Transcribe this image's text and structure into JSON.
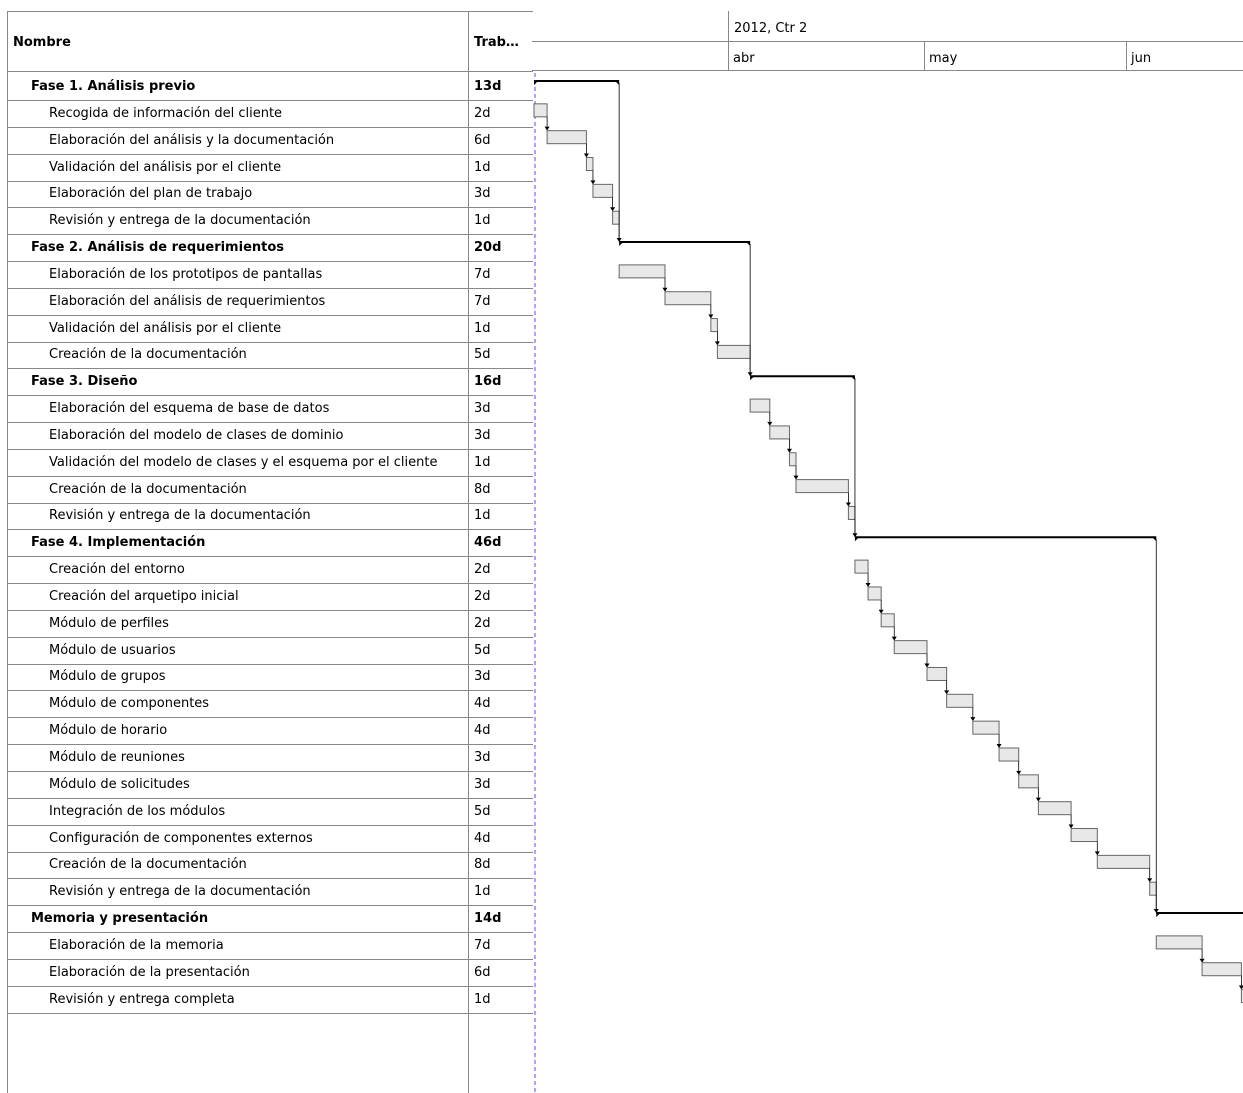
{
  "table": {
    "header_name": "Nombre",
    "header_work": "Trab…"
  },
  "timeline": {
    "period": "2012, Ctr 2",
    "months": [
      "abr",
      "may",
      "jun"
    ]
  },
  "rows": [
    {
      "name": "Fase 1. Análisis previo",
      "work": "13d",
      "phase": true
    },
    {
      "name": "Recogida de información del cliente",
      "work": "2d"
    },
    {
      "name": "Elaboración del análisis y la documentación",
      "work": "6d"
    },
    {
      "name": "Validación del análisis por el cliente",
      "work": "1d"
    },
    {
      "name": "Elaboración del plan de trabajo",
      "work": "3d"
    },
    {
      "name": "Revisión y entrega de la documentación",
      "work": "1d"
    },
    {
      "name": "Fase 2. Análisis de requerimientos",
      "work": "20d",
      "phase": true
    },
    {
      "name": "Elaboración de los prototipos de pantallas",
      "work": "7d"
    },
    {
      "name": "Elaboración del análisis de requerimientos",
      "work": "7d"
    },
    {
      "name": "Validación del análisis por el cliente",
      "work": "1d"
    },
    {
      "name": "Creación de la documentación",
      "work": "5d"
    },
    {
      "name": "Fase 3. Diseño",
      "work": "16d",
      "phase": true
    },
    {
      "name": "Elaboración del esquema de base de datos",
      "work": "3d"
    },
    {
      "name": "Elaboración del modelo de clases de dominio",
      "work": "3d"
    },
    {
      "name": "Validación del modelo de clases y el esquema por el cliente",
      "work": "1d"
    },
    {
      "name": "Creación de la documentación",
      "work": "8d"
    },
    {
      "name": "Revisión y entrega de la documentación",
      "work": "1d"
    },
    {
      "name": "Fase 4. Implementación",
      "work": "46d",
      "phase": true
    },
    {
      "name": "Creación del entorno",
      "work": "2d"
    },
    {
      "name": "Creación del arquetipo inicial",
      "work": "2d"
    },
    {
      "name": "Módulo de perfiles",
      "work": "2d"
    },
    {
      "name": "Módulo de usuarios",
      "work": "5d"
    },
    {
      "name": "Módulo de grupos",
      "work": "3d"
    },
    {
      "name": "Módulo de componentes",
      "work": "4d"
    },
    {
      "name": "Módulo de horario",
      "work": "4d"
    },
    {
      "name": "Módulo de reuniones",
      "work": "3d"
    },
    {
      "name": "Módulo de solicitudes",
      "work": "3d"
    },
    {
      "name": "Integración de los módulos",
      "work": "5d"
    },
    {
      "name": "Configuración de componentes externos",
      "work": "4d"
    },
    {
      "name": "Creación de la documentación",
      "work": "8d"
    },
    {
      "name": "Revisión y entrega de la documentación",
      "work": "1d"
    },
    {
      "name": "Memoria y presentación",
      "work": "14d",
      "phase": true
    },
    {
      "name": "Elaboración de la memoria",
      "work": "7d"
    },
    {
      "name": "Elaboración de la presentación",
      "work": "6d"
    },
    {
      "name": "Revisión y entrega completa",
      "work": "1d"
    }
  ],
  "colors": {
    "grid": "#888888",
    "bar_fill": "#e8e8e8",
    "bar_stroke": "#666666",
    "today_line": "#8a8aff"
  }
}
